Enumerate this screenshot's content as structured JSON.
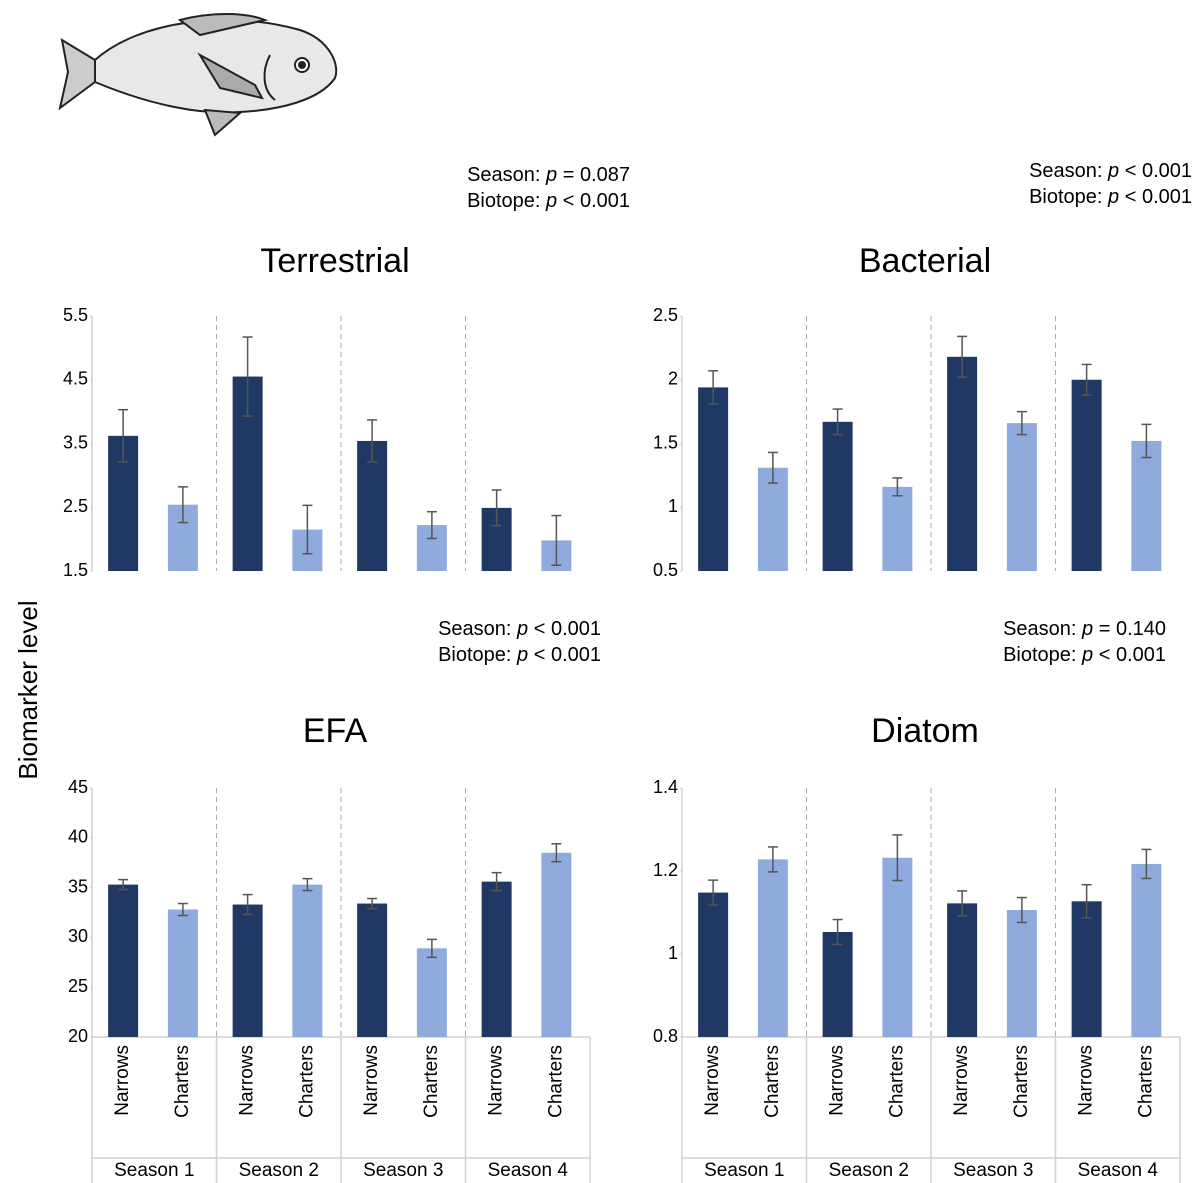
{
  "y_label": "Biomarker level",
  "chart_data": [
    {
      "type": "bar",
      "title": "Terrestrial",
      "annotations": [
        "Season: p = 0.087",
        "Biotope: p < 0.001"
      ],
      "categories": [
        null,
        null,
        null,
        null
      ],
      "series": [
        {
          "color": "#203864",
          "values": [
            3.62,
            4.55,
            3.54,
            2.49
          ],
          "errors": [
            0.41,
            0.62,
            0.33,
            0.28
          ]
        },
        {
          "color": "#8faadc",
          "values": [
            2.54,
            2.15,
            2.22,
            1.98
          ],
          "errors": [
            0.28,
            0.38,
            0.21,
            0.39
          ]
        }
      ],
      "ylim": [
        1.5,
        5.5
      ],
      "yticks": [
        1.5,
        2.5,
        3.5,
        4.5,
        5.5
      ]
    },
    {
      "type": "bar",
      "title": "Bacterial",
      "annotations": [
        "Season: p < 0.001",
        "Biotope: p < 0.001"
      ],
      "categories": [
        null,
        null,
        null,
        null
      ],
      "series": [
        {
          "color": "#203864",
          "values": [
            1.94,
            1.67,
            2.18,
            2.0
          ],
          "errors": [
            0.13,
            0.1,
            0.16,
            0.12
          ]
        },
        {
          "color": "#8faadc",
          "values": [
            1.31,
            1.16,
            1.66,
            1.52
          ],
          "errors": [
            0.12,
            0.07,
            0.09,
            0.13
          ]
        }
      ],
      "ylim": [
        0.5,
        2.5
      ],
      "yticks": [
        0.5,
        1,
        1.5,
        2,
        2.5
      ]
    },
    {
      "type": "bar",
      "title": "EFA",
      "annotations": [
        "Season: p < 0.001",
        "Biotope: p < 0.001"
      ],
      "categories": [
        "Season 1",
        "Season 2",
        "Season 3",
        "Season 4"
      ],
      "series": [
        {
          "name": "Narrows",
          "color": "#203864",
          "values": [
            35.3,
            33.3,
            33.4,
            35.6
          ],
          "errors": [
            0.5,
            1.0,
            0.5,
            0.9
          ]
        },
        {
          "name": "Charters",
          "color": "#8faadc",
          "values": [
            32.8,
            35.3,
            28.9,
            38.5
          ],
          "errors": [
            0.6,
            0.6,
            0.9,
            0.9
          ]
        }
      ],
      "ylim": [
        20,
        45
      ],
      "yticks": [
        20,
        25,
        30,
        35,
        40,
        45
      ]
    },
    {
      "type": "bar",
      "title": "Diatom",
      "annotations": [
        "Season: p = 0.140",
        "Biotope: p < 0.001"
      ],
      "categories": [
        "Season 1",
        "Season 2",
        "Season 3",
        "Season 4"
      ],
      "series": [
        {
          "name": "Narrows",
          "color": "#203864",
          "values": [
            1.148,
            1.053,
            1.122,
            1.127
          ],
          "errors": [
            0.03,
            0.03,
            0.03,
            0.04
          ]
        },
        {
          "name": "Charters",
          "color": "#8faadc",
          "values": [
            1.228,
            1.232,
            1.106,
            1.217
          ],
          "errors": [
            0.03,
            0.055,
            0.03,
            0.035
          ]
        }
      ],
      "ylim": [
        0.8,
        1.4
      ],
      "yticks": [
        0.8,
        1,
        1.2,
        1.4
      ]
    }
  ]
}
